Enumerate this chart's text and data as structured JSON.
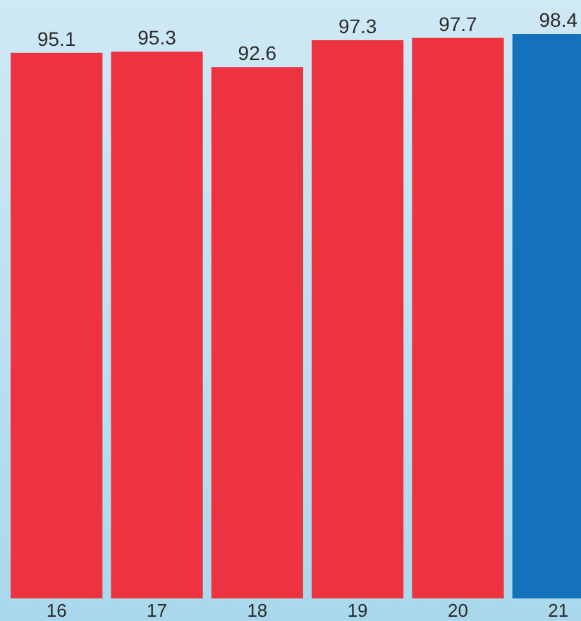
{
  "chart_data": {
    "type": "bar",
    "categories": [
      "16",
      "17",
      "18",
      "19",
      "20",
      "21"
    ],
    "values": [
      95.1,
      95.3,
      92.6,
      97.3,
      97.7,
      98.4
    ],
    "colors": [
      "#ee3340",
      "#ee3340",
      "#ee3340",
      "#ee3340",
      "#ee3340",
      "#1472bd"
    ],
    "data_labels": true
  }
}
